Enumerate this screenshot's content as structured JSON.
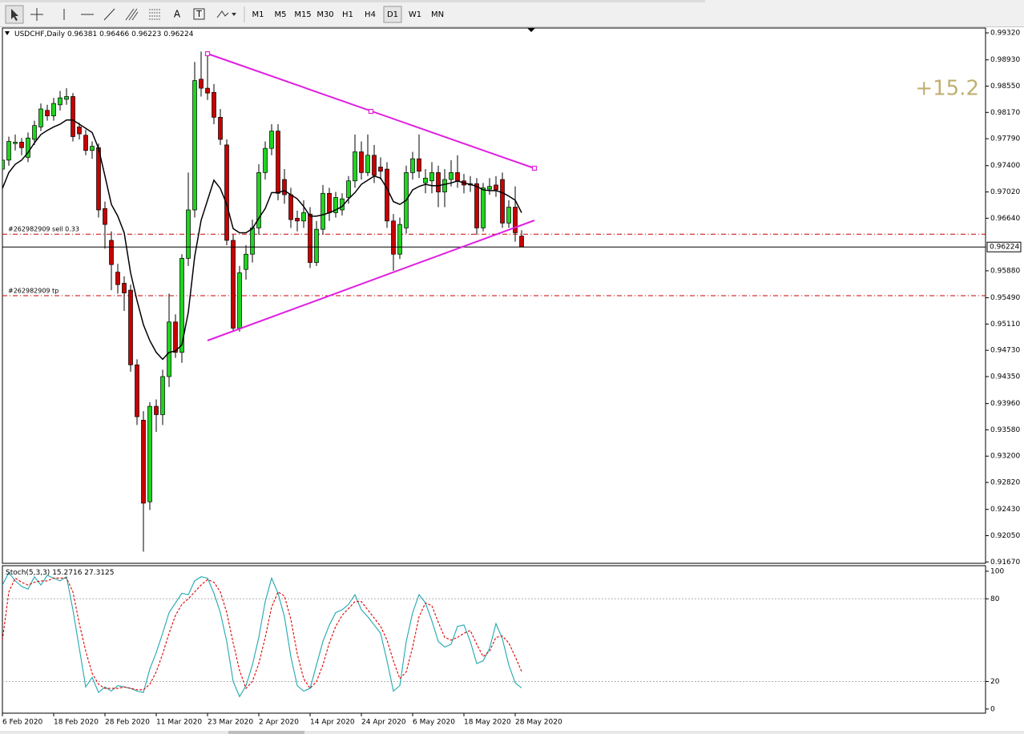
{
  "toolbar": {
    "timeframes": [
      "M1",
      "M5",
      "M15",
      "M30",
      "H1",
      "H4",
      "D1",
      "W1",
      "MN"
    ],
    "active": "D1",
    "text_tools": [
      "A",
      "T"
    ]
  },
  "chart_data": [
    {
      "type": "candlestick",
      "title": "USDCHF,Daily",
      "profit": "+15.2",
      "x": [
        "6 Feb 2020",
        null,
        null,
        null,
        null,
        null,
        null,
        null,
        "18 Feb 2020",
        null,
        null,
        null,
        null,
        null,
        null,
        null,
        "28 Feb 2020",
        null,
        null,
        null,
        null,
        null,
        null,
        null,
        "11 Mar 2020",
        null,
        null,
        null,
        null,
        null,
        null,
        null,
        "23 Mar 2020",
        null,
        null,
        null,
        null,
        null,
        null,
        null,
        "2 Apr 2020",
        null,
        null,
        null,
        null,
        null,
        null,
        null,
        "14 Apr 2020",
        null,
        null,
        null,
        null,
        null,
        null,
        null,
        "24 Apr 2020",
        null,
        null,
        null,
        null,
        null,
        null,
        null,
        "6 May 2020",
        null,
        null,
        null,
        null,
        null,
        null,
        null,
        "18 May 2020",
        null,
        null,
        null,
        null,
        null,
        null,
        null,
        "28 May 2020",
        null
      ],
      "open": [
        0.9735,
        0.9748,
        0.9772,
        0.9774,
        0.9752,
        0.9778,
        0.9796,
        0.982,
        0.9812,
        0.9828,
        0.9836,
        0.984,
        0.9796,
        0.9784,
        0.9762,
        0.9766,
        0.9678,
        0.9632,
        0.9586,
        0.957,
        0.956,
        0.9452,
        0.9372,
        0.9254,
        0.9392,
        0.938,
        0.9435,
        0.9514,
        0.947,
        0.9606,
        0.9676,
        0.9865,
        0.9852,
        0.9846,
        0.981,
        0.977,
        0.9632,
        0.9505,
        0.959,
        0.9612,
        0.965,
        0.973,
        0.9765,
        0.979,
        0.972,
        0.9698,
        0.9664,
        0.966,
        0.967,
        0.96,
        0.9648,
        0.97,
        0.9672,
        0.9676,
        0.9694,
        0.9718,
        0.976,
        0.973,
        0.9755,
        0.9738,
        0.9735,
        0.966,
        0.9612,
        0.965,
        0.973,
        0.975,
        0.9715,
        0.9718,
        0.973,
        0.9702,
        0.972,
        0.973,
        0.9718,
        0.9712,
        0.9714,
        0.965,
        0.9706,
        0.9712,
        0.972,
        0.9657,
        0.968,
        0.96381
      ],
      "high": [
        0.976,
        0.9782,
        0.9785,
        0.978,
        0.9788,
        0.9805,
        0.983,
        0.9828,
        0.9838,
        0.9848,
        0.9852,
        0.9845,
        0.9802,
        0.9792,
        0.9775,
        0.9772,
        0.9688,
        0.9645,
        0.9598,
        0.958,
        0.9568,
        0.946,
        0.9385,
        0.9398,
        0.9402,
        0.9445,
        0.9555,
        0.9525,
        0.9612,
        0.973,
        0.989,
        0.9905,
        0.9902,
        0.9858,
        0.9822,
        0.9778,
        0.964,
        0.9595,
        0.9625,
        0.9662,
        0.9742,
        0.9775,
        0.98,
        0.98,
        0.9735,
        0.9708,
        0.9675,
        0.969,
        0.968,
        0.966,
        0.9712,
        0.9708,
        0.9702,
        0.97,
        0.9725,
        0.9785,
        0.9775,
        0.9785,
        0.977,
        0.9752,
        0.9745,
        0.967,
        0.9665,
        0.974,
        0.976,
        0.9785,
        0.9735,
        0.9745,
        0.974,
        0.9735,
        0.9748,
        0.9755,
        0.9728,
        0.9725,
        0.9722,
        0.9715,
        0.9722,
        0.9725,
        0.973,
        0.969,
        0.971,
        0.96466
      ],
      "low": [
        0.9725,
        0.974,
        0.9762,
        0.9755,
        0.9745,
        0.977,
        0.979,
        0.9805,
        0.9805,
        0.982,
        0.9828,
        0.9775,
        0.9778,
        0.9755,
        0.975,
        0.9665,
        0.962,
        0.956,
        0.9555,
        0.953,
        0.9442,
        0.9365,
        0.9182,
        0.9242,
        0.9355,
        0.9365,
        0.942,
        0.9462,
        0.9455,
        0.9595,
        0.9665,
        0.984,
        0.9835,
        0.98,
        0.977,
        0.9625,
        0.95,
        0.95,
        0.9575,
        0.96,
        0.964,
        0.972,
        0.9755,
        0.969,
        0.9685,
        0.965,
        0.9645,
        0.965,
        0.9592,
        0.9595,
        0.964,
        0.966,
        0.9665,
        0.9668,
        0.9685,
        0.9708,
        0.972,
        0.9725,
        0.9715,
        0.972,
        0.965,
        0.9588,
        0.9605,
        0.9642,
        0.972,
        0.9722,
        0.97,
        0.97,
        0.968,
        0.968,
        0.971,
        0.9708,
        0.97,
        0.9702,
        0.964,
        0.9645,
        0.9698,
        0.9695,
        0.965,
        0.965,
        0.963,
        0.96223
      ],
      "close": [
        0.9748,
        0.9775,
        0.9774,
        0.9766,
        0.978,
        0.9798,
        0.9822,
        0.9812,
        0.983,
        0.9838,
        0.984,
        0.9782,
        0.9786,
        0.9762,
        0.9768,
        0.9676,
        0.9655,
        0.9597,
        0.9568,
        0.9556,
        0.9452,
        0.9377,
        0.9252,
        0.9392,
        0.938,
        0.9435,
        0.9514,
        0.947,
        0.9606,
        0.9676,
        0.9863,
        0.9852,
        0.9845,
        0.981,
        0.9778,
        0.9632,
        0.9505,
        0.9585,
        0.9612,
        0.965,
        0.973,
        0.9765,
        0.979,
        0.97,
        0.9698,
        0.9662,
        0.966,
        0.9672,
        0.96,
        0.9648,
        0.97,
        0.9672,
        0.9694,
        0.9692,
        0.9718,
        0.976,
        0.973,
        0.9755,
        0.9726,
        0.9732,
        0.966,
        0.9612,
        0.9655,
        0.973,
        0.975,
        0.9732,
        0.9722,
        0.973,
        0.9702,
        0.972,
        0.973,
        0.9718,
        0.9712,
        0.9714,
        0.965,
        0.9708,
        0.971,
        0.9705,
        0.9657,
        0.968,
        0.9643,
        0.96224
      ],
      "up_color": "#1fd41f",
      "down_color": "#c80000",
      "moving_average": {
        "color": "#000000",
        "values": [
          0.9707,
          0.973,
          0.9742,
          0.9748,
          0.9759,
          0.9773,
          0.9785,
          0.9791,
          0.9796,
          0.98,
          0.9806,
          0.9806,
          0.98,
          0.9794,
          0.9788,
          0.9765,
          0.9725,
          0.9684,
          0.9667,
          0.9643,
          0.9585,
          0.9545,
          0.951,
          0.9487,
          0.947,
          0.946,
          0.947,
          0.9472,
          0.9481,
          0.9528,
          0.9609,
          0.9661,
          0.969,
          0.9719,
          0.9707,
          0.9684,
          0.9649,
          0.9643,
          0.9643,
          0.9649,
          0.9664,
          0.9678,
          0.9701,
          0.9701,
          0.9704,
          0.9698,
          0.9692,
          0.9681,
          0.9667,
          0.9667,
          0.9669,
          0.9672,
          0.9676,
          0.9681,
          0.9692,
          0.9701,
          0.9713,
          0.9719,
          0.9725,
          0.9722,
          0.9707,
          0.9688,
          0.9684,
          0.969,
          0.9705,
          0.971,
          0.9713,
          0.9711,
          0.9711,
          0.9713,
          0.9715,
          0.9718,
          0.9715,
          0.9713,
          0.971,
          0.9705,
          0.9704,
          0.9704,
          0.9701,
          0.9696,
          0.969,
          0.9672
        ]
      },
      "orders": [
        {
          "label": "#262982909 sell 0.33",
          "value": 0.9641
        },
        {
          "label": "#262982909 tp",
          "value": 0.9552
        }
      ],
      "order_color": "#c80000",
      "ylim": [
        0.9165,
        0.9939
      ],
      "yticks": [
        {
          "value": 0.9932,
          "label": "0.99320"
        },
        {
          "value": 0.9893,
          "label": "0.98930"
        },
        {
          "value": 0.9855,
          "label": "0.98550"
        },
        {
          "value": 0.9817,
          "label": "0.98170"
        },
        {
          "value": 0.9779,
          "label": "0.97790"
        },
        {
          "value": 0.974,
          "label": "0.97400"
        },
        {
          "value": 0.9702,
          "label": "0.97020"
        },
        {
          "value": 0.9664,
          "label": "0.96640"
        },
        {
          "value": 0.9588,
          "label": "0.95880"
        },
        {
          "value": 0.9549,
          "label": "0.95490"
        },
        {
          "value": 0.9511,
          "label": "0.95110"
        },
        {
          "value": 0.9473,
          "label": "0.94730"
        },
        {
          "value": 0.9435,
          "label": "0.94350"
        },
        {
          "value": 0.9396,
          "label": "0.93960"
        },
        {
          "value": 0.9358,
          "label": "0.93580"
        },
        {
          "value": 0.932,
          "label": "0.93200"
        },
        {
          "value": 0.9282,
          "label": "0.92820"
        },
        {
          "value": 0.9243,
          "label": "0.92430"
        },
        {
          "value": 0.9205,
          "label": "0.92050"
        },
        {
          "value": 0.9167,
          "label": "0.91670"
        }
      ]
    },
    {
      "type": "line",
      "title": "Stoch(5,3,3)",
      "series": [
        {
          "color": "#20a8b0",
          "values": [
            90,
            99,
            93,
            89,
            87,
            96,
            90,
            97,
            95,
            93,
            96,
            72,
            44,
            16,
            23,
            12,
            16,
            13,
            17,
            16,
            15,
            13,
            12,
            29,
            41,
            55,
            70,
            77,
            84,
            83,
            93,
            96,
            95,
            84,
            70,
            49,
            20,
            9,
            17,
            32,
            52,
            78,
            95,
            84,
            67,
            38,
            17,
            13,
            15,
            32,
            49,
            61,
            70,
            72,
            76,
            83,
            72,
            67,
            61,
            55,
            35,
            13,
            17,
            49,
            70,
            83,
            77,
            64,
            49,
            45,
            47,
            60,
            61,
            49,
            33,
            35,
            44,
            62,
            51,
            32,
            19,
            15.2716
          ]
        },
        {
          "color": "#e00000",
          "dashed": true,
          "values": [
            50,
            85,
            95,
            92,
            90,
            92,
            93,
            93,
            95,
            95,
            95,
            85,
            62,
            42,
            26,
            18,
            15,
            15,
            15,
            16,
            15,
            14,
            14,
            18,
            27,
            40,
            55,
            68,
            76,
            80,
            85,
            90,
            94,
            92,
            85,
            70,
            48,
            28,
            15,
            20,
            33,
            52,
            74,
            85,
            82,
            65,
            40,
            22,
            15,
            20,
            32,
            48,
            60,
            68,
            73,
            78,
            78,
            72,
            66,
            60,
            50,
            35,
            22,
            27,
            45,
            67,
            77,
            75,
            63,
            52,
            50,
            52,
            55,
            57,
            47,
            38,
            42,
            52,
            53,
            48,
            38,
            27.3125
          ]
        }
      ],
      "ylim": [
        -3,
        104
      ],
      "yticks": [
        100,
        80,
        20,
        0
      ],
      "dotted_levels": [
        80,
        20
      ]
    }
  ]
}
